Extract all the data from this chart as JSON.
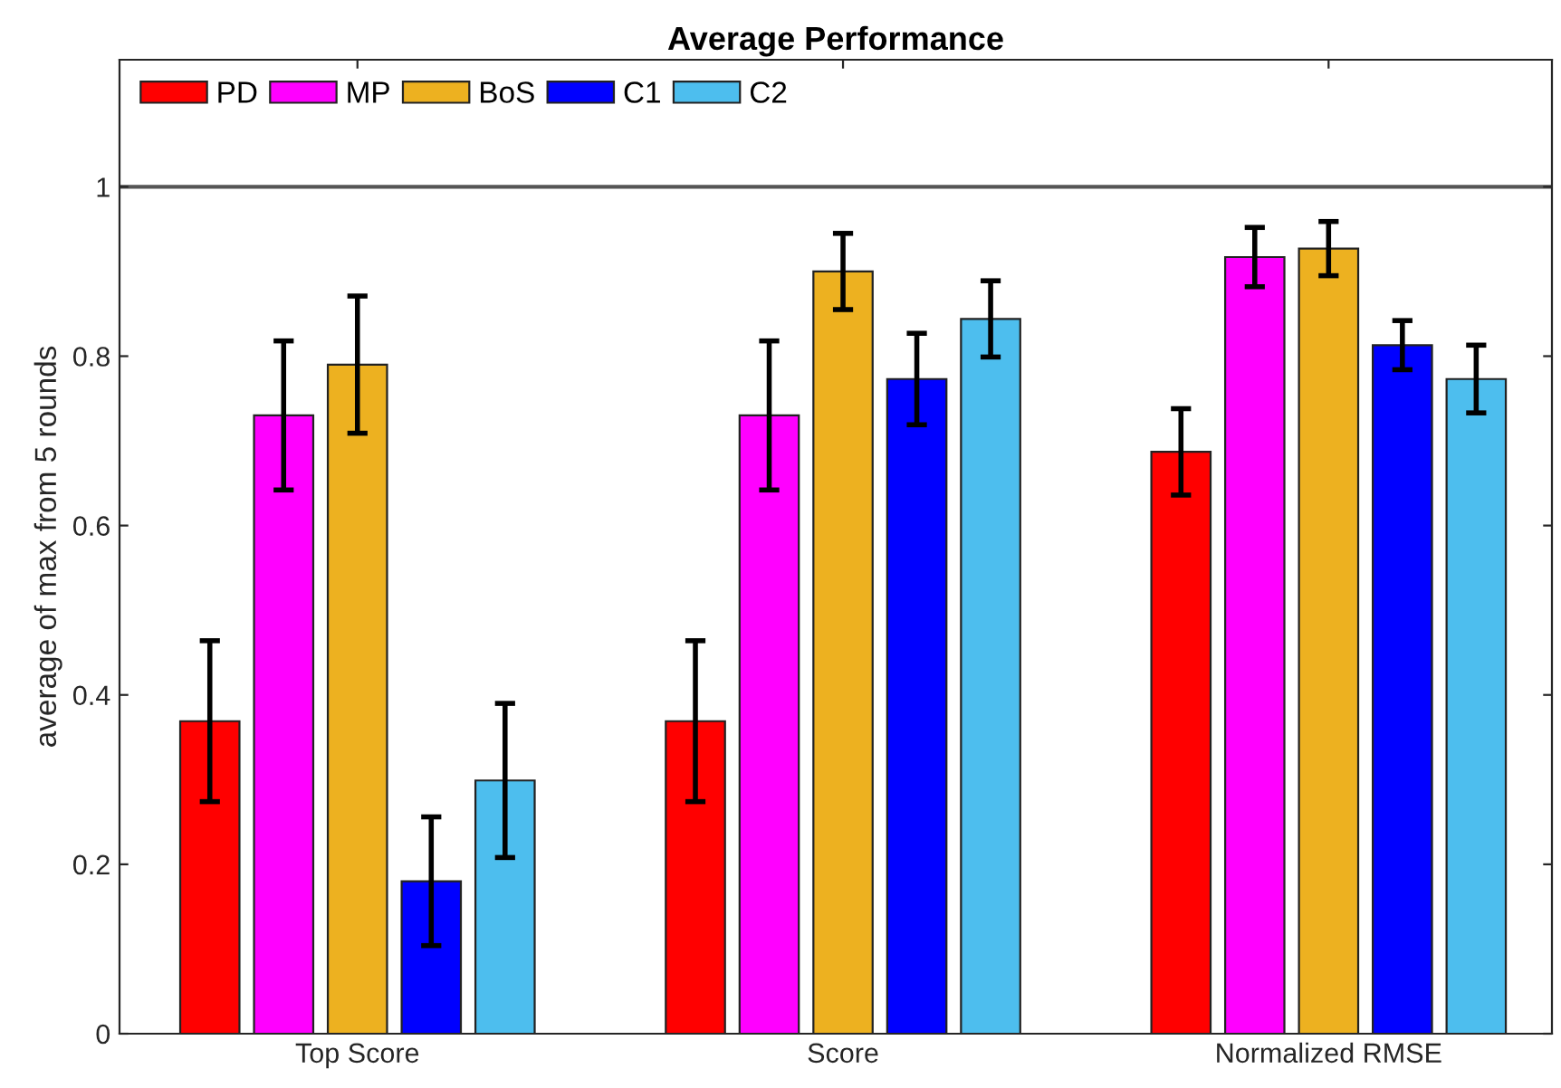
{
  "chart_data": {
    "type": "bar",
    "title": "Average Performance",
    "ylabel": "average of max from 5 rounds",
    "categories": [
      "Top Score",
      "Score",
      "Normalized RMSE"
    ],
    "series": [
      {
        "name": "PD",
        "color": "#ff0000",
        "values": [
          0.369,
          0.369,
          0.687
        ],
        "errors": [
          0.095,
          0.095,
          0.051
        ]
      },
      {
        "name": "MP",
        "color": "#ff00ff",
        "values": [
          0.73,
          0.73,
          0.917
        ],
        "errors": [
          0.088,
          0.088,
          0.035
        ]
      },
      {
        "name": "BoS",
        "color": "#edb120",
        "values": [
          0.79,
          0.9,
          0.927
        ],
        "errors": [
          0.081,
          0.045,
          0.032
        ]
      },
      {
        "name": "C1",
        "color": "#0000ff",
        "values": [
          0.18,
          0.773,
          0.813
        ],
        "errors": [
          0.076,
          0.054,
          0.029
        ]
      },
      {
        "name": "C2",
        "color": "#4dbeee",
        "values": [
          0.299,
          0.844,
          0.773
        ],
        "errors": [
          0.091,
          0.045,
          0.04
        ]
      }
    ],
    "ylim": [
      0,
      1.15
    ],
    "yticks": [
      0,
      0.2,
      0.4,
      0.6,
      0.8,
      1
    ],
    "ref_lines": [
      {
        "axis": "y",
        "value": 1,
        "color": "#555555"
      }
    ],
    "grid": false,
    "legend": "top left"
  }
}
